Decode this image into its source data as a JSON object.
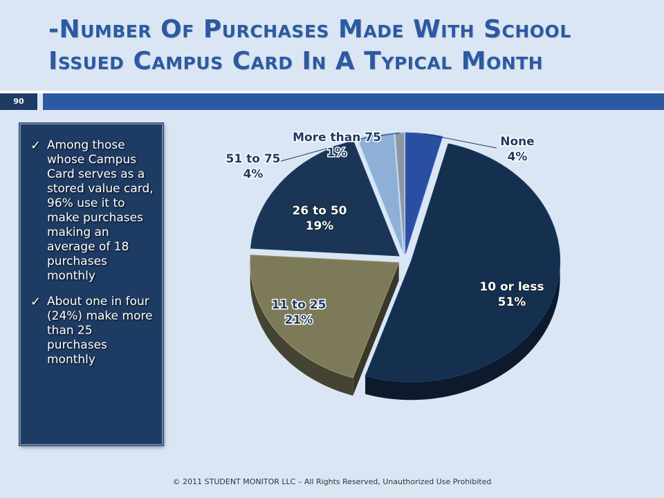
{
  "slide": {
    "title_line1": "-Number Of Purchases Made With School",
    "title_line2": "Issued Campus Card In A Typical Month",
    "page_number": "90",
    "footer": "© 2011 STUDENT MONITOR LLC – All Rights Reserved, Unauthorized Use Prohibited"
  },
  "textbox": {
    "bullets": [
      "Among those whose Campus Card serves as a stored value card, 96% use it to make purchases making an average of 18 purchases monthly",
      "About one in four (24%) make more than 25 purchases monthly"
    ]
  },
  "colors": {
    "title": "#2b5aa3",
    "bar": "#2b5aa3",
    "panel": "#1e3b63",
    "background": "#dbe6f5"
  },
  "chart_data": {
    "type": "pie",
    "slices": [
      {
        "label": "None",
        "value": 4,
        "display": "4%",
        "color": "#2b4fa0"
      },
      {
        "label": "10 or less",
        "value": 51,
        "display": "51%",
        "color": "#15304f"
      },
      {
        "label": "11 to 25",
        "value": 21,
        "display": "21%",
        "color": "#7d7a5a"
      },
      {
        "label": "26 to 50",
        "value": 19,
        "display": "19%",
        "color": "#1a3556"
      },
      {
        "label": "51 to 75",
        "value": 4,
        "display": "4%",
        "color": "#8fb0d6"
      },
      {
        "label": "More than 75",
        "value": 1,
        "display": "1%",
        "color": "#8c97a1"
      }
    ],
    "exploded": true,
    "three_d": true,
    "legend": "none (data labels on/near slices)"
  }
}
